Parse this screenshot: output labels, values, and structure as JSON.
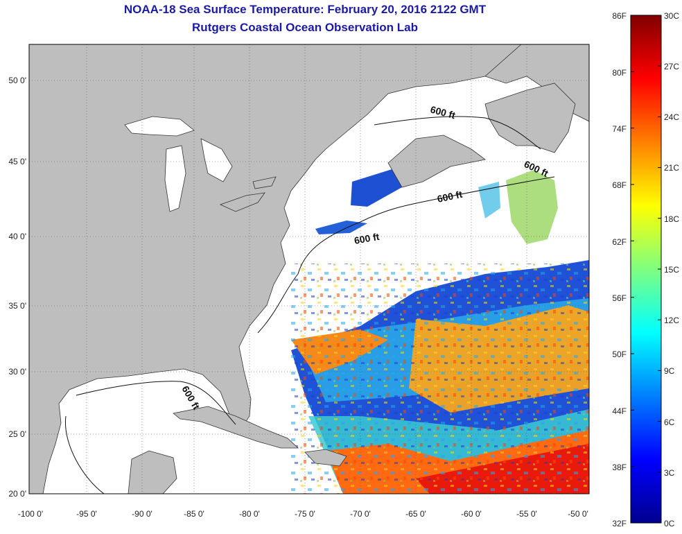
{
  "header": {
    "title": "NOAA-18 Sea Surface Temperature:  February 20, 2016 2122 GMT",
    "subtitle": "Rutgers Coastal Ocean Observation Lab"
  },
  "map": {
    "lon_range": [
      -100,
      -50
    ],
    "lat_range": [
      20,
      52.5
    ],
    "lon_ticks": [
      "-100 0'",
      "-95 0'",
      "-90 0'",
      "-85 0'",
      "-80 0'",
      "-75 0'",
      "-70 0'",
      "-65 0'",
      "-60 0'",
      "-55 0'",
      "-50 0'"
    ],
    "lat_ticks": [
      "50 0'",
      "45 0'",
      "40 0'",
      "35 0'",
      "30 0'",
      "25 0'",
      "20 0'"
    ],
    "contour_labels": [
      "600 ft",
      "600 ft",
      "600 ft",
      "600 ft",
      "600 ft"
    ],
    "colors": {
      "land": "#bebebe",
      "ocean_nodata": "#ffffff",
      "title": "#1a1aa6"
    }
  },
  "colorbar": {
    "f_labels": [
      "86F",
      "80F",
      "74F",
      "68F",
      "62F",
      "56F",
      "50F",
      "44F",
      "38F",
      "32F"
    ],
    "c_labels": [
      "30C",
      "27C",
      "24C",
      "21C",
      "18C",
      "15C",
      "12C",
      "9C",
      "6C",
      "3C",
      "0C"
    ],
    "colormap": "jet"
  }
}
